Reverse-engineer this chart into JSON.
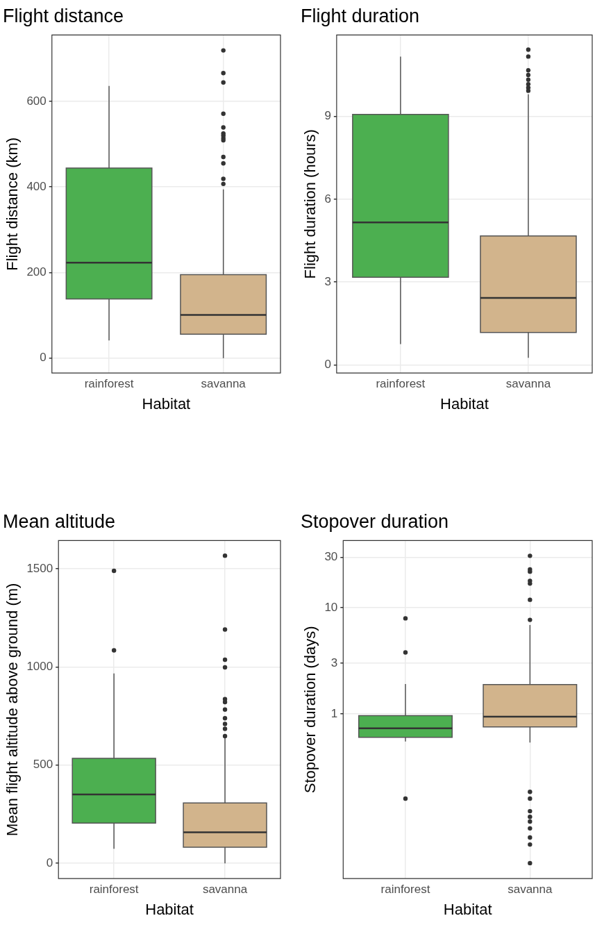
{
  "chart_data": [
    {
      "type": "box",
      "title": "Flight distance",
      "xlabel": "Habitat",
      "ylabel": "Flight distance (km)",
      "categories": [
        "rainforest",
        "savanna"
      ],
      "colors": [
        "#4caf50",
        "#d2b48c"
      ],
      "boxes": [
        {
          "low": 41,
          "q1": 138,
          "median": 223,
          "q3": 444,
          "high": 636
        },
        {
          "low": 0,
          "q1": 56,
          "median": 101,
          "q3": 195,
          "high": 394,
          "outliers": [
            719,
            666,
            644,
            571,
            539,
            525,
            520,
            514,
            509,
            470,
            455,
            419,
            407
          ]
        }
      ],
      "ylim": [
        -35,
        755
      ],
      "yticks": [
        0,
        200,
        400,
        600
      ],
      "grid": true
    },
    {
      "type": "box",
      "title": "Flight duration",
      "xlabel": "Habitat",
      "ylabel": "Flight duration (hours)",
      "categories": [
        "rainforest",
        "savanna"
      ],
      "colors": [
        "#4caf50",
        "#d2b48c"
      ],
      "boxes": [
        {
          "low": 0.75,
          "q1": 3.17,
          "median": 5.16,
          "q3": 9.07,
          "high": 11.17
        },
        {
          "low": 0.25,
          "q1": 1.17,
          "median": 2.42,
          "q3": 4.67,
          "high": 9.8,
          "outliers": [
            11.42,
            11.17,
            10.67,
            10.5,
            10.33,
            10.17,
            10.04,
            9.93
          ]
        }
      ],
      "ylim": [
        -0.3,
        11.95
      ],
      "yticks": [
        0,
        3,
        6,
        9
      ],
      "grid": true
    },
    {
      "type": "box",
      "title": "Mean altitude",
      "xlabel": "Habitat",
      "ylabel": "Mean flight altitude above ground (m)",
      "categories": [
        "rainforest",
        "savanna"
      ],
      "colors": [
        "#4caf50",
        "#d2b48c"
      ],
      "boxes": [
        {
          "low": 74,
          "q1": 205,
          "median": 351,
          "q3": 535,
          "high": 967,
          "outliers": [
            1490,
            1085
          ]
        },
        {
          "low": 0,
          "q1": 82,
          "median": 158,
          "q3": 307,
          "high": 640,
          "outliers": [
            1567,
            1191,
            1037,
            998,
            836,
            821,
            783,
            739,
            710,
            685,
            648
          ]
        }
      ],
      "ylim": [
        -78,
        1644
      ],
      "yticks": [
        0,
        500,
        1000,
        1500
      ],
      "grid": true
    },
    {
      "type": "box",
      "title": "Stopover duration",
      "xlabel": "Habitat",
      "ylabel": "Stopover duration (days)",
      "categories": [
        "rainforest",
        "savanna"
      ],
      "colors": [
        "#4caf50",
        "#d2b48c"
      ],
      "boxes": [
        {
          "low": 0.55,
          "q1": 0.602,
          "median": 0.731,
          "q3": 0.961,
          "high": 1.91,
          "outliers": [
            7.95,
            3.79,
            0.159
          ]
        },
        {
          "low": 0.537,
          "q1": 0.753,
          "median": 0.942,
          "q3": 1.89,
          "high": 6.88,
          "outliers": [
            30.9,
            23.0,
            21.9,
            17.9,
            16.9,
            11.9,
            7.69,
            0.184,
            0.159,
            0.121,
            0.107,
            0.0966,
            0.0833,
            0.0683,
            0.0587,
            0.0392
          ]
        }
      ],
      "ylim": [
        0.028,
        43
      ],
      "yticks": [
        1,
        3,
        10,
        30
      ],
      "log": true,
      "grid": true
    }
  ]
}
